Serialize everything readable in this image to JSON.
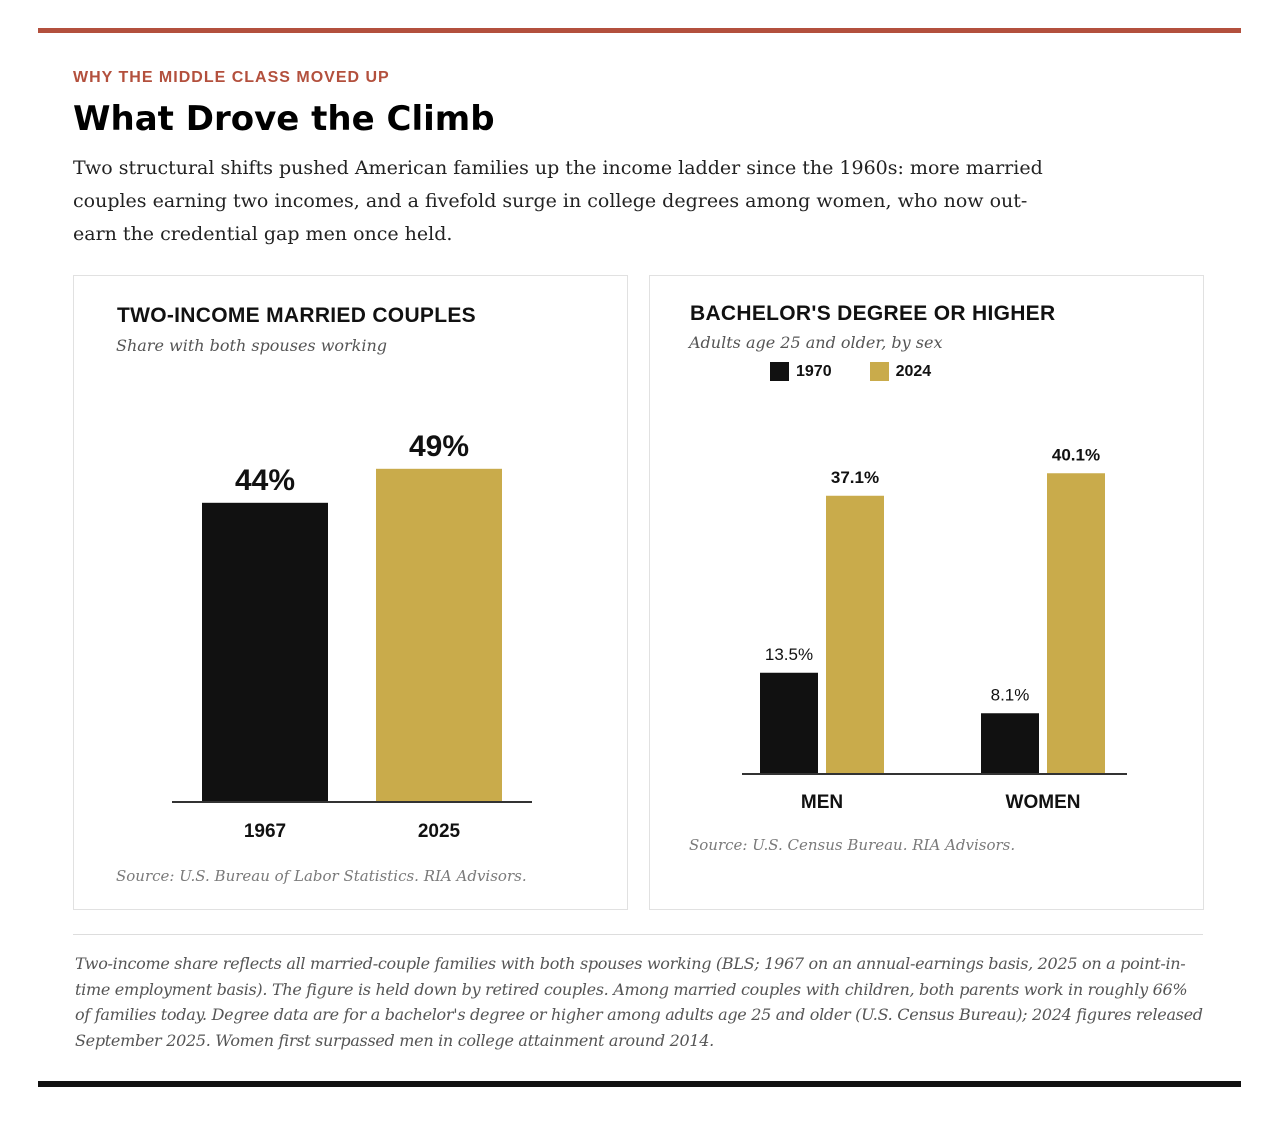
{
  "kicker": "WHY THE MIDDLE CLASS MOVED UP",
  "headline": "What Drove the Climb",
  "dek": "Two structural shifts pushed American families up the income ladder since the 1960s: more married couples earning two incomes, and a fivefold surge in college degrees among women, who now out-earn the credential gap men once held.",
  "colors": {
    "accent": "#b3503d",
    "dark": "#111111",
    "gold": "#c9ab4b"
  },
  "left_card": {
    "title": "TWO-INCOME MARRIED COUPLES",
    "subtitle": "Share with both spouses working",
    "source": "Source: U.S. Bureau of Labor Statistics. RIA Advisors."
  },
  "right_card": {
    "title": "BACHELOR'S DEGREE OR HIGHER",
    "subtitle": "Adults age 25 and older, by sex",
    "source": "Source: U.S. Census Bureau. RIA Advisors.",
    "legend": [
      {
        "label": "1970",
        "color": "#111111"
      },
      {
        "label": "2024",
        "color": "#c9ab4b"
      }
    ]
  },
  "chart_data": [
    {
      "type": "bar",
      "title": "TWO-INCOME MARRIED COUPLES",
      "subtitle": "Share with both spouses working",
      "categories": [
        "1967",
        "2025"
      ],
      "values": [
        44,
        49
      ],
      "value_labels": [
        "44%",
        "49%"
      ],
      "colors": [
        "#111111",
        "#c9ab4b"
      ],
      "unit": "%",
      "grid": false
    },
    {
      "type": "bar",
      "title": "BACHELOR'S DEGREE OR HIGHER",
      "subtitle": "Adults age 25 and older, by sex",
      "categories": [
        "MEN",
        "WOMEN"
      ],
      "series": [
        {
          "name": "1970",
          "values": [
            13.5,
            8.1
          ],
          "value_labels": [
            "13.5%",
            "8.1%"
          ],
          "color": "#111111"
        },
        {
          "name": "2024",
          "values": [
            37.1,
            40.1
          ],
          "value_labels": [
            "37.1%",
            "40.1%"
          ],
          "color": "#c9ab4b"
        }
      ],
      "unit": "%",
      "grid": false,
      "legend_position": "top-left"
    }
  ],
  "footnote": "Two-income share reflects all married-couple families with both spouses working (BLS; 1967 on an annual-earnings basis, 2025 on a point-in-time employment basis). The figure is held down by retired couples. Among married couples with children, both parents work in roughly 66% of families today. Degree data are for a bachelor's degree or higher among adults age 25 and older (U.S. Census Bureau); 2024 figures released September 2025. Women first surpassed men in college attainment around 2014."
}
